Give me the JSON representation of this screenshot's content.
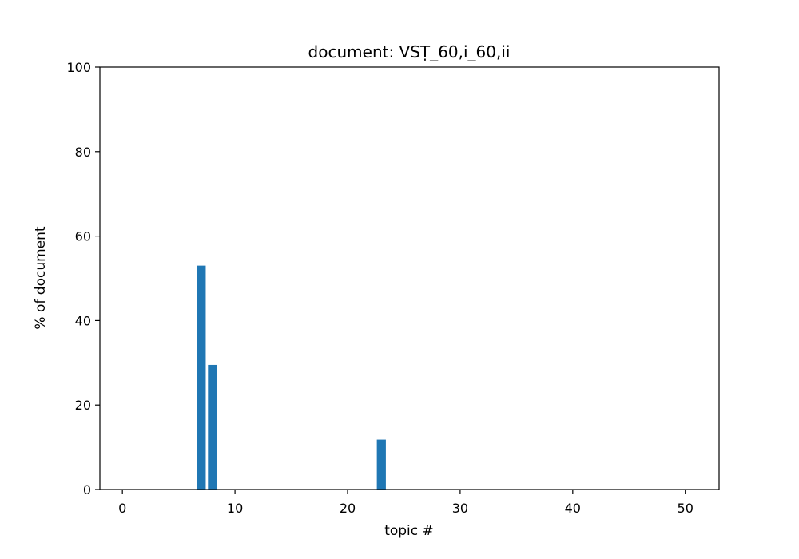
{
  "chart_data": {
    "type": "bar",
    "title": "document: VSṬ_60,i_60,ii",
    "xlabel": "topic #",
    "ylabel": "% of document",
    "xlim": [
      -2,
      53
    ],
    "ylim": [
      0,
      100
    ],
    "xticks": [
      0,
      10,
      20,
      30,
      40,
      50
    ],
    "yticks": [
      0,
      20,
      40,
      60,
      80,
      100
    ],
    "bar_color": "#1f77b4",
    "x": [
      0,
      1,
      2,
      3,
      4,
      5,
      6,
      7,
      8,
      9,
      10,
      11,
      12,
      13,
      14,
      15,
      16,
      17,
      18,
      19,
      20,
      21,
      22,
      23,
      24,
      25,
      26,
      27,
      28,
      29,
      30,
      31,
      32,
      33,
      34,
      35,
      36,
      37,
      38,
      39,
      40,
      41,
      42,
      43,
      44,
      45,
      46,
      47,
      48,
      49,
      50
    ],
    "values": [
      0,
      0,
      0,
      0,
      0,
      0,
      0,
      53.0,
      29.5,
      0,
      0,
      0,
      0,
      0,
      0,
      0,
      0,
      0,
      0,
      0,
      0,
      0,
      0,
      11.8,
      0,
      0,
      0,
      0,
      0,
      0,
      0,
      0,
      0,
      0,
      0,
      0,
      0,
      0,
      0,
      0,
      0,
      0,
      0,
      0,
      0,
      0,
      0,
      0,
      0,
      0,
      0
    ],
    "grid": false,
    "legend": "none"
  }
}
